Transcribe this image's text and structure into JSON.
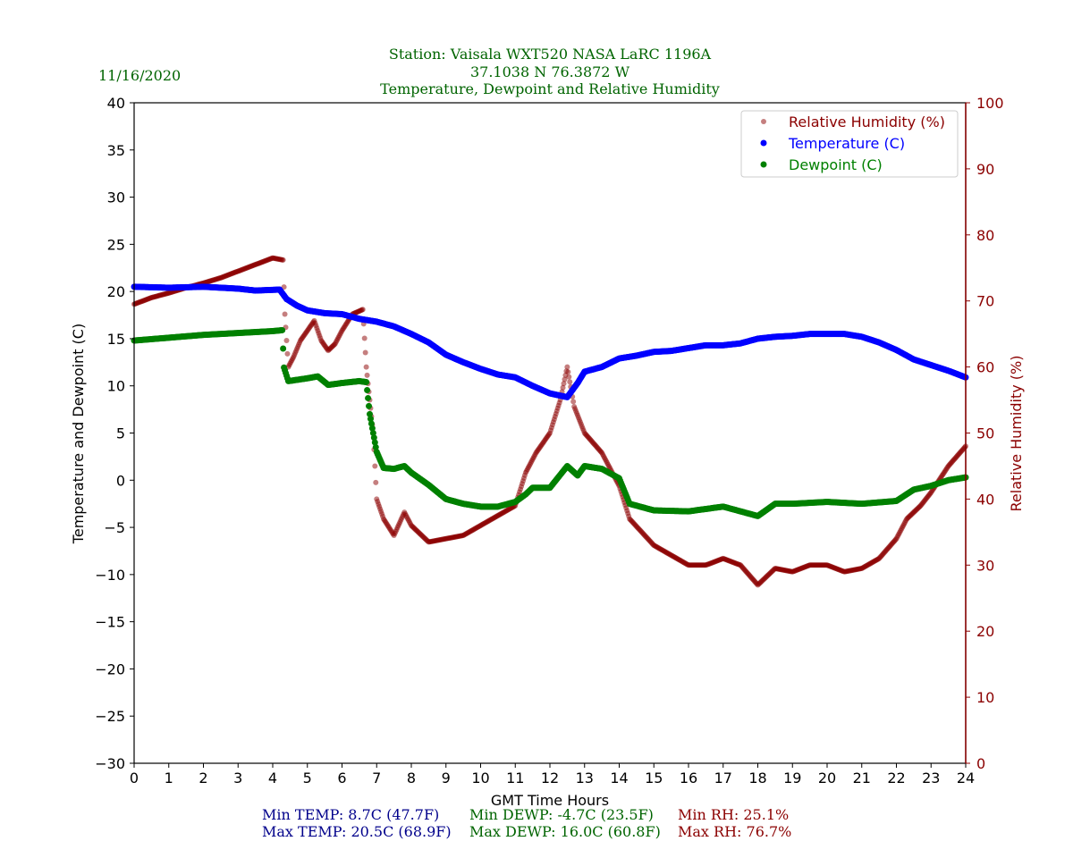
{
  "header": {
    "date": "11/16/2020",
    "title_line1": "Station:  Vaisala WXT520  NASA LaRC 1196A",
    "title_line2": "37.1038 N 76.3872 W",
    "title_line3": "Temperature, Dewpoint and Relative Humidity"
  },
  "stats": {
    "min_temp": "Min TEMP: 8.7C (47.7F)",
    "max_temp": "Max TEMP: 20.5C (68.9F)",
    "min_dewp": "Min DEWP: -4.7C (23.5F)",
    "max_dewp": "Max DEWP: 16.0C (60.8F)",
    "min_rh": "Min RH: 25.1%",
    "max_rh": "Max RH: 76.7%"
  },
  "colors": {
    "title": "#006400",
    "temp": "#0000ff",
    "dewp": "#008000",
    "rh": "#8b0000",
    "stat_temp": "#00008b"
  },
  "chart_data": {
    "type": "scatter",
    "xlabel": "GMT Time Hours",
    "ylabel": "Temperature and Dewpoint (C)",
    "y2label": "Relative Humidity (%)",
    "xlim": [
      0,
      24
    ],
    "ylim": [
      -30,
      40
    ],
    "y2lim": [
      0,
      100
    ],
    "xticks": [
      0,
      1,
      2,
      3,
      4,
      5,
      6,
      7,
      8,
      9,
      10,
      11,
      12,
      13,
      14,
      15,
      16,
      17,
      18,
      19,
      20,
      21,
      22,
      23,
      24
    ],
    "yticks": [
      -30,
      -25,
      -20,
      -15,
      -10,
      -5,
      0,
      5,
      10,
      15,
      20,
      25,
      30,
      35,
      40
    ],
    "y2ticks": [
      0,
      10,
      20,
      30,
      40,
      50,
      60,
      70,
      80,
      90,
      100
    ],
    "legend_position": "top-right",
    "series": [
      {
        "name": "Relative Humidity (%)",
        "axis": "right",
        "color": "#8b0000",
        "x": [
          0,
          0.5,
          1,
          1.5,
          2,
          2.5,
          3,
          3.5,
          4,
          4.3,
          4.35,
          4.45,
          4.6,
          4.8,
          5,
          5.2,
          5.4,
          5.6,
          5.8,
          6,
          6.3,
          6.6,
          6.7,
          6.9,
          7,
          7.2,
          7.5,
          7.8,
          8,
          8.5,
          9,
          9.5,
          10,
          10.5,
          11,
          11.3,
          11.6,
          12,
          12.3,
          12.5,
          12.7,
          13,
          13.5,
          14,
          14.3,
          15,
          16,
          16.5,
          17,
          17.5,
          18,
          18.5,
          19,
          19.5,
          20,
          20.5,
          21,
          21.5,
          22,
          22.3,
          22.7,
          23,
          23.5,
          24
        ],
        "y": [
          69.5,
          70.5,
          71.2,
          72,
          72.7,
          73.5,
          74.5,
          75.5,
          76.5,
          76.2,
          68,
          60,
          61.5,
          64,
          65.5,
          67,
          64,
          62.5,
          63.5,
          65.5,
          68,
          68.7,
          60,
          50,
          40,
          37,
          34.5,
          38,
          36,
          33.5,
          34,
          34.5,
          36,
          37.5,
          39,
          44,
          47,
          50,
          55,
          60,
          54,
          50,
          47,
          42,
          37,
          33,
          30,
          30,
          31,
          30,
          27,
          29.5,
          29,
          30,
          30,
          29,
          29.5,
          31,
          34,
          37,
          39,
          41,
          45,
          48
        ]
      },
      {
        "name": "Temperature (C)",
        "axis": "left",
        "color": "#0000ff",
        "x": [
          0,
          1,
          2,
          3,
          3.5,
          4.2,
          4.4,
          4.7,
          5,
          5.5,
          6,
          6.5,
          7,
          7.5,
          8,
          8.5,
          9,
          9.5,
          10,
          10.5,
          11,
          11.5,
          12,
          12.5,
          12.8,
          13,
          13.5,
          14,
          14.5,
          15,
          15.5,
          16,
          16.5,
          17,
          17.5,
          18,
          18.5,
          19,
          19.5,
          20,
          20.5,
          21,
          21.5,
          22,
          22.5,
          23,
          23.5,
          24
        ],
        "y": [
          20.5,
          20.4,
          20.5,
          20.3,
          20.1,
          20.2,
          19.2,
          18.5,
          18.0,
          17.7,
          17.6,
          17.1,
          16.8,
          16.3,
          15.5,
          14.6,
          13.3,
          12.5,
          11.8,
          11.2,
          10.9,
          10.0,
          9.2,
          8.8,
          10.3,
          11.5,
          12.0,
          12.9,
          13.2,
          13.6,
          13.7,
          14.0,
          14.3,
          14.3,
          14.5,
          15.0,
          15.2,
          15.3,
          15.5,
          15.5,
          15.5,
          15.2,
          14.6,
          13.8,
          12.8,
          12.2,
          11.6,
          10.9
        ]
      },
      {
        "name": "Dewpoint (C)",
        "axis": "left",
        "color": "#008000",
        "x": [
          0,
          1,
          2,
          3,
          4,
          4.28,
          4.32,
          4.45,
          5,
          5.3,
          5.6,
          6,
          6.5,
          6.7,
          6.8,
          7,
          7.2,
          7.5,
          7.8,
          8,
          8.5,
          9,
          9.5,
          10,
          10.5,
          11,
          11.3,
          11.5,
          12,
          12.5,
          12.8,
          13,
          13.5,
          14,
          14.3,
          15,
          16,
          17,
          18,
          18.5,
          19,
          20,
          21,
          22,
          22.5,
          23,
          23.5,
          24
        ],
        "y": [
          14.8,
          15.1,
          15.4,
          15.6,
          15.8,
          15.9,
          12,
          10.5,
          10.8,
          11,
          10.1,
          10.3,
          10.5,
          10.4,
          7,
          3,
          1.3,
          1.2,
          1.5,
          0.8,
          -0.5,
          -2,
          -2.5,
          -2.8,
          -2.8,
          -2.3,
          -1.5,
          -0.8,
          -0.8,
          1.5,
          0.5,
          1.5,
          1.2,
          0.2,
          -2.5,
          -3.2,
          -3.3,
          -2.8,
          -3.8,
          -2.5,
          -2.5,
          -2.3,
          -2.5,
          -2.2,
          -1,
          -0.6,
          0,
          0.3
        ]
      }
    ]
  }
}
